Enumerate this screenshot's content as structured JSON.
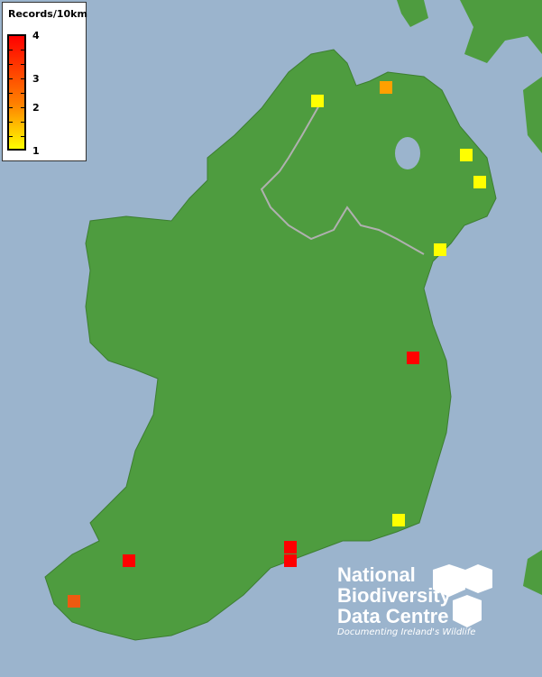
{
  "legend": {
    "title": "Records/10km",
    "labels": [
      "4",
      "3",
      "2",
      "1"
    ],
    "color_low": "#ffff00",
    "color_high": "#ff0000"
  },
  "records": [
    1,
    2,
    1,
    1,
    1,
    4,
    1,
    4,
    4,
    4,
    3
  ],
  "colors": {
    "sea": "#9bb4cd",
    "land": "#4e9c3f",
    "border": "#b0b0b0"
  },
  "logo": {
    "line1": "National",
    "line2": "Biodiversity",
    "line3": "Data Centre",
    "tagline": "Documenting Ireland's Wildlife"
  }
}
